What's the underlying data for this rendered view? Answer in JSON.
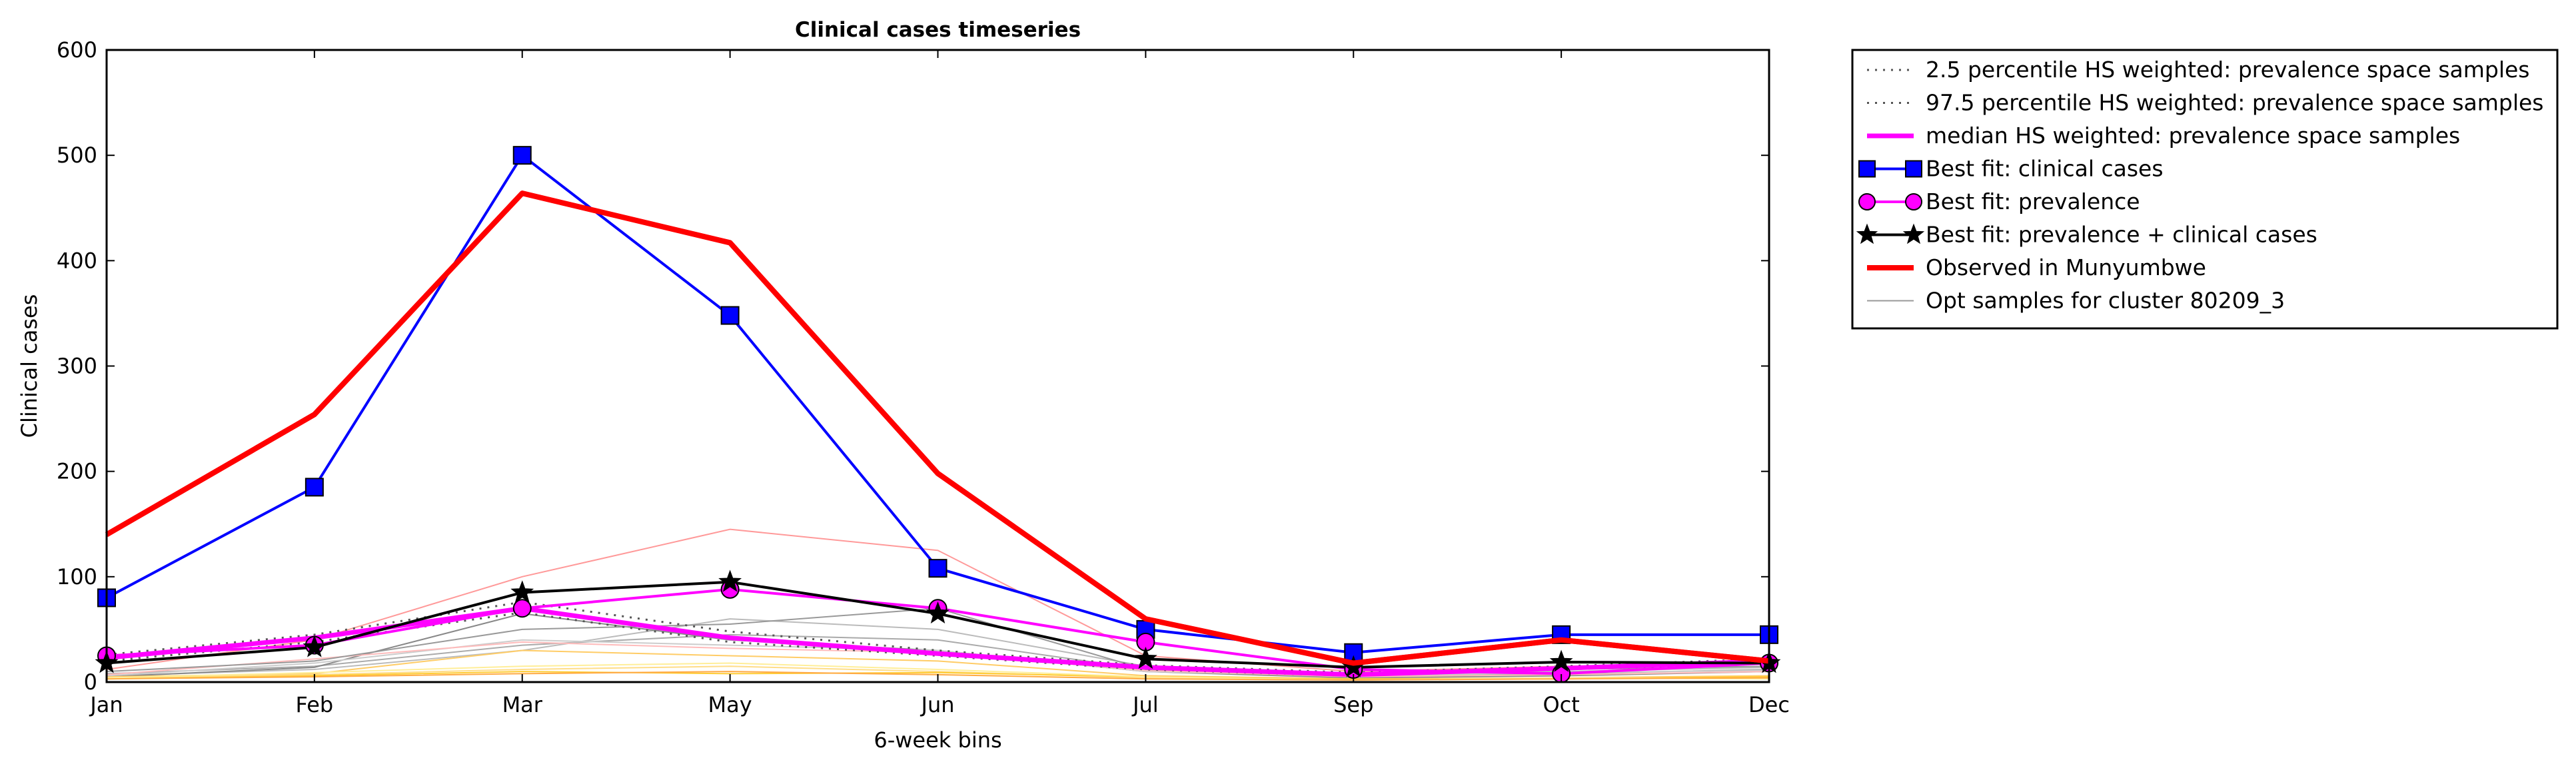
{
  "chart_data": {
    "type": "line",
    "title": "Clinical cases timeseries",
    "xlabel": "6-week bins",
    "ylabel": "Clinical cases",
    "categories": [
      "Jan",
      "Feb",
      "Mar",
      "May",
      "Jun",
      "Jul",
      "Sep",
      "Oct",
      "Dec"
    ],
    "ylim": [
      0,
      600
    ],
    "yticks": [
      0,
      100,
      200,
      300,
      400,
      500,
      600
    ],
    "grid": false,
    "legend_position": "outside-right",
    "series": [
      {
        "name": "2.5 percentile HS weighted: prevalence space samples",
        "color": "#555555",
        "style": "dotted",
        "values": [
          20,
          38,
          66,
          38,
          25,
          12,
          6,
          12,
          18
        ]
      },
      {
        "name": "97.5 percentile HS weighted: prevalence space samples",
        "color": "#555555",
        "style": "dotted",
        "values": [
          26,
          45,
          76,
          48,
          30,
          16,
          9,
          15,
          22
        ]
      },
      {
        "name": "median HS weighted: prevalence space samples",
        "color": "#ff00ff",
        "style": "thick",
        "values": [
          23,
          42,
          70,
          42,
          27,
          14,
          7,
          13,
          20
        ]
      },
      {
        "name": "Best fit: clinical cases",
        "color": "#0000ff",
        "marker": "square",
        "values": [
          80,
          185,
          500,
          348,
          108,
          50,
          28,
          45,
          45
        ]
      },
      {
        "name": "Best fit: prevalence",
        "color": "#ff00ff",
        "marker": "circle",
        "values": [
          25,
          35,
          70,
          88,
          70,
          38,
          12,
          8,
          18
        ]
      },
      {
        "name": "Best fit: prevalence + clinical cases",
        "color": "#000000",
        "marker": "star",
        "values": [
          18,
          33,
          85,
          95,
          65,
          22,
          14,
          19,
          18
        ]
      },
      {
        "name": "Observed in Munyumbwe",
        "color": "#ff0000",
        "style": "thick",
        "values": [
          140,
          254,
          464,
          417,
          198,
          60,
          18,
          40,
          20
        ]
      },
      {
        "name": "Opt samples for cluster 80209_3",
        "color": "#999999",
        "style": "thin",
        "values": [
          10,
          20,
          50,
          55,
          70,
          12,
          8,
          12,
          15
        ]
      }
    ],
    "background_samples": [
      {
        "color": "#ff9999",
        "values": [
          12,
          40,
          100,
          145,
          125,
          25,
          10,
          15,
          18
        ]
      },
      {
        "color": "#aaaaaa",
        "values": [
          8,
          15,
          35,
          45,
          40,
          12,
          5,
          8,
          12
        ]
      },
      {
        "color": "#bbbbbb",
        "values": [
          6,
          12,
          30,
          60,
          50,
          15,
          6,
          10,
          14
        ]
      },
      {
        "color": "#888888",
        "values": [
          5,
          14,
          65,
          40,
          30,
          10,
          4,
          6,
          10
        ]
      },
      {
        "color": "#ffcc66",
        "values": [
          5,
          8,
          30,
          25,
          20,
          6,
          3,
          4,
          6
        ]
      },
      {
        "color": "#ffdd88",
        "values": [
          4,
          7,
          12,
          15,
          10,
          4,
          2,
          3,
          4
        ]
      },
      {
        "color": "#ffcc33",
        "values": [
          3,
          6,
          10,
          8,
          9,
          5,
          3,
          3,
          5
        ]
      },
      {
        "color": "#ffee99",
        "values": [
          4,
          9,
          15,
          18,
          12,
          5,
          2,
          4,
          3
        ]
      },
      {
        "color": "#cccccc",
        "values": [
          6,
          18,
          40,
          35,
          30,
          10,
          6,
          9,
          11
        ]
      },
      {
        "color": "#ffbbbb",
        "values": [
          7,
          22,
          38,
          32,
          28,
          11,
          5,
          7,
          10
        ]
      },
      {
        "color": "#ffaa44",
        "values": [
          3,
          5,
          8,
          10,
          7,
          3,
          2,
          3,
          4
        ]
      }
    ]
  }
}
